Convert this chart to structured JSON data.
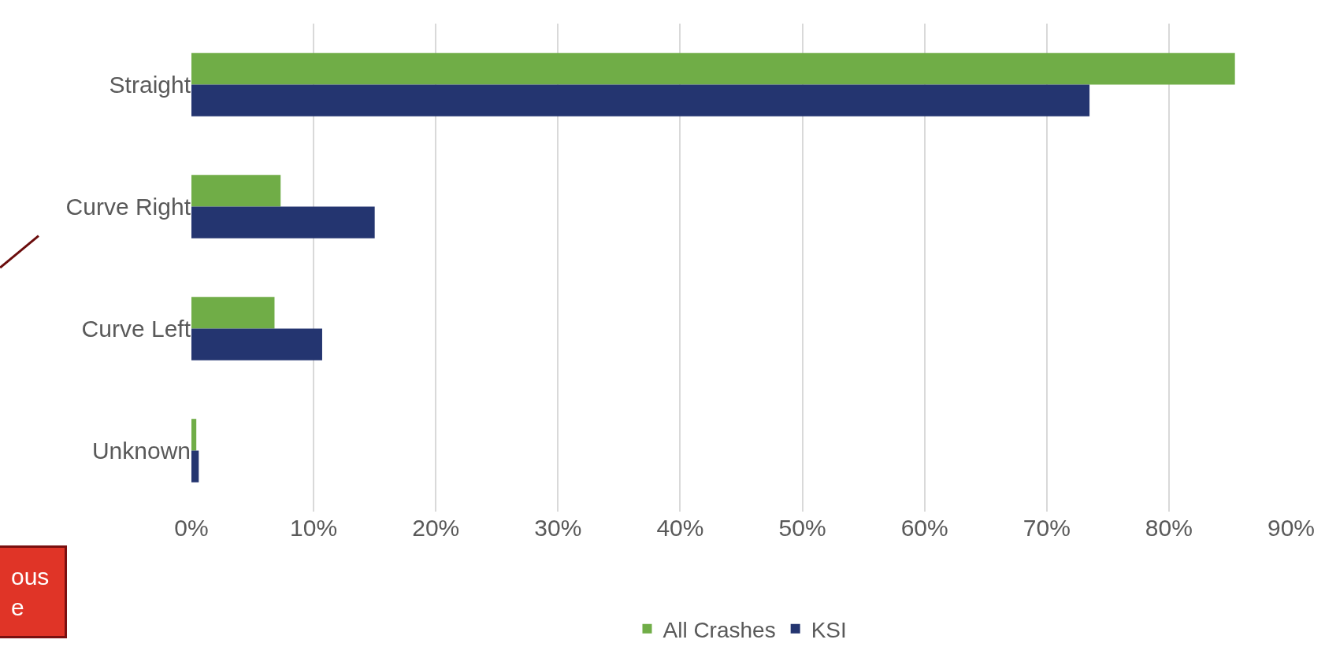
{
  "chart_data": {
    "type": "bar",
    "orientation": "horizontal",
    "categories": [
      "Straight",
      "Curve Right",
      "Curve Left",
      "Unknown"
    ],
    "series": [
      {
        "name": "All Crashes",
        "color": "#70ad47",
        "values": [
          85.4,
          7.3,
          6.8,
          0.4
        ]
      },
      {
        "name": "KSI",
        "color": "#243570",
        "values": [
          73.5,
          15.0,
          10.7,
          0.6
        ]
      }
    ],
    "xlim": [
      0,
      90
    ],
    "xticks": [
      {
        "value": 0,
        "label": "0%"
      },
      {
        "value": 10,
        "label": "10%"
      },
      {
        "value": 20,
        "label": "20%"
      },
      {
        "value": 30,
        "label": "30%"
      },
      {
        "value": 40,
        "label": "40%"
      },
      {
        "value": 50,
        "label": "50%"
      },
      {
        "value": 60,
        "label": "60%"
      },
      {
        "value": 70,
        "label": "70%"
      },
      {
        "value": 80,
        "label": "80%"
      },
      {
        "value": 90,
        "label": "90%"
      }
    ],
    "grid": "x",
    "legend": "bottom",
    "annotations": [
      "ous\ne"
    ]
  }
}
